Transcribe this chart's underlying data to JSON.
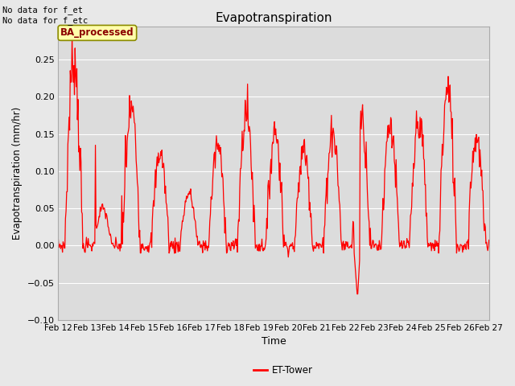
{
  "title": "Evapotranspiration",
  "xlabel": "Time",
  "ylabel": "Evapotranspiration (mm/hr)",
  "ylim": [
    -0.1,
    0.295
  ],
  "yticks": [
    -0.1,
    -0.05,
    0.0,
    0.05,
    0.1,
    0.15,
    0.2,
    0.25
  ],
  "annotation_top_left": "No data for f_et\nNo data for f_etc",
  "box_label": "BA_processed",
  "legend_label": "ET-Tower",
  "line_color": "#ff0000",
  "fig_facecolor": "#e8e8e8",
  "axes_facecolor": "#dcdcdc",
  "grid_color": "#ffffff",
  "x_labels": [
    "Feb 12",
    "Feb 13",
    "Feb 14",
    "Feb 15",
    "Feb 16",
    "Feb 17",
    "Feb 18",
    "Feb 19",
    "Feb 20",
    "Feb 21",
    "Feb 22",
    "Feb 23",
    "Feb 24",
    "Feb 25",
    "Feb 26",
    "Feb 27"
  ]
}
